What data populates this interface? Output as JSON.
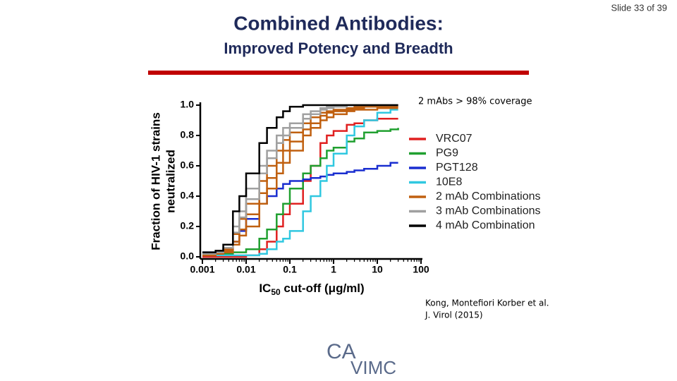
{
  "slide_number": "Slide 33 of 39",
  "title": "Combined Antibodies:",
  "subtitle": "Improved Potency and Breadth",
  "annotation": "2 mAbs > 98% coverage",
  "citation": [
    "Kong, Montefiori Korber  et al.",
    "J. Virol (2015)"
  ],
  "logo": [
    "CA",
    "VIMC"
  ],
  "chart_data": {
    "type": "line",
    "ylabel": [
      "Fraction of HIV-1 strains",
      "neutralized"
    ],
    "xlabel": {
      "main": "IC",
      "sub": "50",
      "rest": " cut-off (μg/ml)"
    },
    "xscale": "log",
    "xlim": [
      0.001,
      100
    ],
    "xticks": [
      0.001,
      0.01,
      0.1,
      1,
      10,
      100
    ],
    "ylim": [
      0,
      1
    ],
    "yticks": [
      {
        "value": 0,
        "label": "0.0"
      },
      {
        "value": 0.2,
        "label": "0.2"
      },
      {
        "value": 0.4,
        "label": "0.4"
      },
      {
        "value": 0.6,
        "label": "0.6"
      },
      {
        "value": 0.8,
        "label": "0.8"
      },
      {
        "value": 1,
        "label": "1.0"
      }
    ],
    "legend": "right",
    "x": [
      0.001,
      0.002,
      0.003,
      0.005,
      0.007,
      0.01,
      0.02,
      0.03,
      0.05,
      0.07,
      0.1,
      0.2,
      0.3,
      0.5,
      0.7,
      1,
      2,
      3,
      5,
      10,
      20,
      30
    ],
    "series": [
      {
        "name": "VRC07",
        "color": "#e02020",
        "values": [
          [
            0,
            0,
            0,
            0,
            0,
            0.01,
            0.05,
            0.1,
            0.2,
            0.28,
            0.35,
            0.5,
            0.6,
            0.75,
            0.8,
            0.83,
            0.87,
            0.88,
            0.9,
            0.91,
            0.91,
            0.91
          ]
        ]
      },
      {
        "name": "PG9",
        "color": "#20a030",
        "values": [
          [
            0.02,
            0.02,
            0.02,
            0.03,
            0.03,
            0.05,
            0.12,
            0.18,
            0.28,
            0.35,
            0.45,
            0.55,
            0.6,
            0.65,
            0.7,
            0.72,
            0.76,
            0.78,
            0.82,
            0.83,
            0.84,
            0.85
          ]
        ]
      },
      {
        "name": "PGT128",
        "color": "#1a2ed0",
        "values": [
          [
            0.03,
            0.03,
            0.05,
            0.1,
            0.17,
            0.25,
            0.35,
            0.4,
            0.45,
            0.48,
            0.5,
            0.51,
            0.52,
            0.53,
            0.54,
            0.55,
            0.56,
            0.57,
            0.58,
            0.6,
            0.62,
            0.62
          ]
        ]
      },
      {
        "name": "10E8",
        "color": "#30c8e0",
        "values": [
          [
            0.01,
            0.01,
            0.01,
            0.01,
            0.01,
            0.01,
            0.02,
            0.05,
            0.1,
            0.12,
            0.17,
            0.3,
            0.4,
            0.5,
            0.6,
            0.68,
            0.8,
            0.86,
            0.9,
            0.95,
            0.97,
            0.97
          ]
        ]
      },
      {
        "name": "2 mAb Combinations",
        "color": "#c06010",
        "values": [
          [
            0.02,
            0.03,
            0.05,
            0.15,
            0.25,
            0.35,
            0.5,
            0.6,
            0.7,
            0.77,
            0.82,
            0.88,
            0.92,
            0.95,
            0.96,
            0.97,
            0.98,
            0.99,
            0.99,
            0.99,
            0.99,
            0.99
          ],
          [
            0.01,
            0.02,
            0.03,
            0.08,
            0.14,
            0.2,
            0.35,
            0.45,
            0.55,
            0.62,
            0.7,
            0.8,
            0.85,
            0.9,
            0.92,
            0.94,
            0.96,
            0.97,
            0.97,
            0.98,
            0.98,
            0.98
          ],
          [
            0.02,
            0.02,
            0.04,
            0.1,
            0.18,
            0.28,
            0.42,
            0.52,
            0.62,
            0.7,
            0.76,
            0.84,
            0.88,
            0.93,
            0.95,
            0.96,
            0.97,
            0.98,
            0.99,
            0.99,
            0.99,
            0.99
          ]
        ]
      },
      {
        "name": "3 mAb Combinations",
        "color": "#a0a0a0",
        "values": [
          [
            0.02,
            0.04,
            0.08,
            0.2,
            0.3,
            0.45,
            0.6,
            0.7,
            0.8,
            0.85,
            0.88,
            0.94,
            0.96,
            0.98,
            0.99,
            1,
            1,
            1,
            1,
            1,
            1,
            1
          ],
          [
            0.02,
            0.03,
            0.06,
            0.16,
            0.26,
            0.38,
            0.55,
            0.65,
            0.75,
            0.8,
            0.85,
            0.91,
            0.94,
            0.97,
            0.98,
            0.99,
            1,
            1,
            1,
            1,
            1,
            1
          ]
        ]
      },
      {
        "name": "4 mAb Combination",
        "color": "#000000",
        "values": [
          [
            0.03,
            0.04,
            0.08,
            0.3,
            0.4,
            0.55,
            0.75,
            0.85,
            0.92,
            0.96,
            0.99,
            1,
            1,
            1,
            1,
            1,
            1,
            1,
            1,
            1,
            1,
            1
          ]
        ]
      }
    ]
  }
}
